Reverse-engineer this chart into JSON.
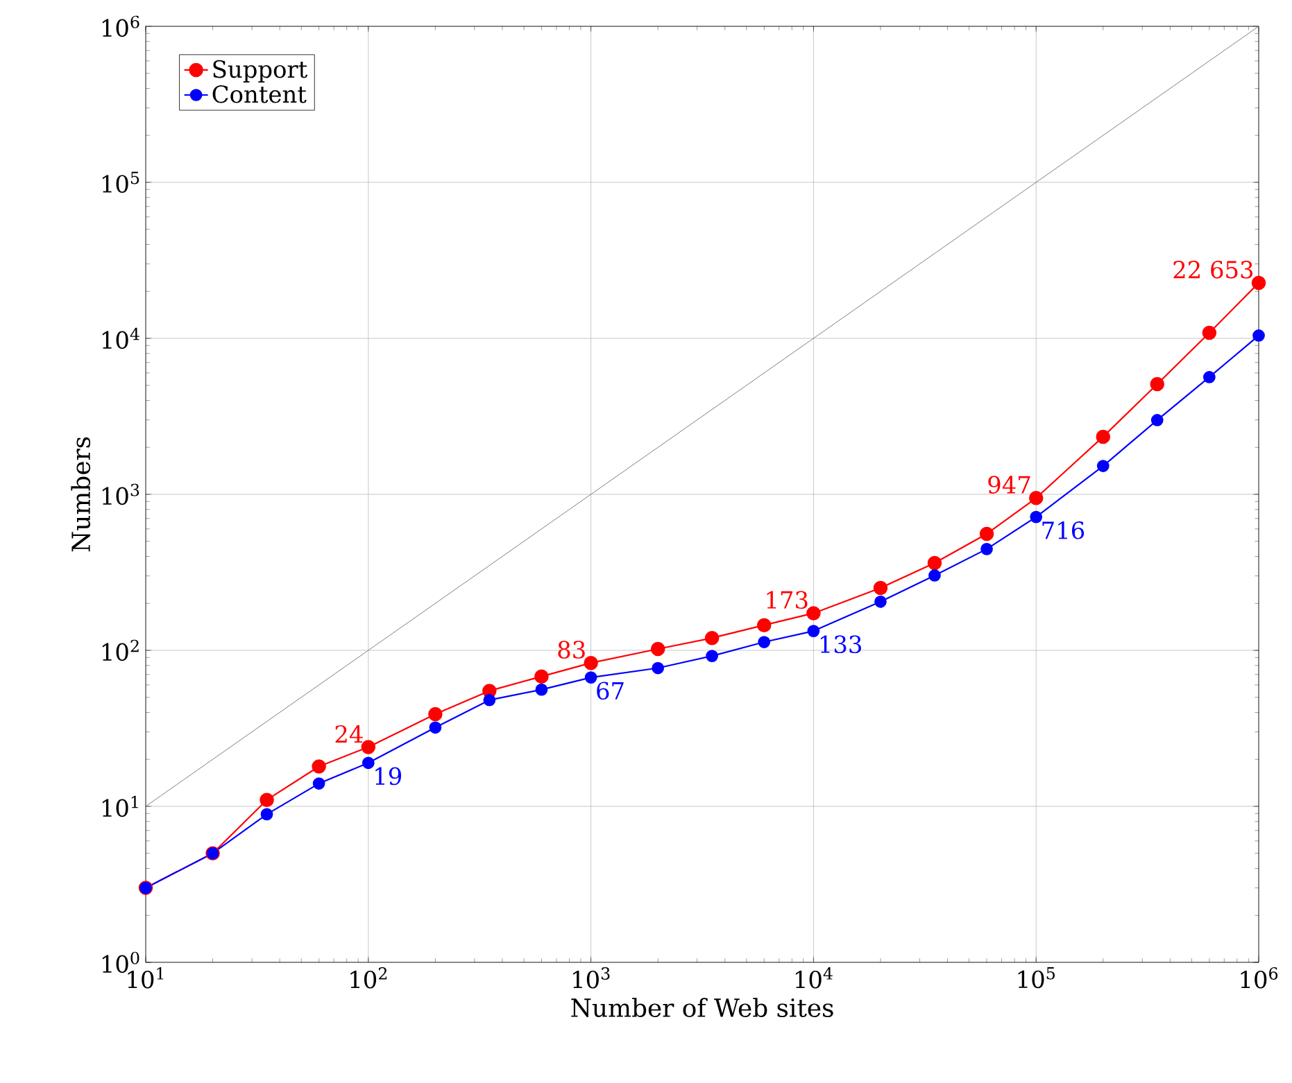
{
  "chart_data": {
    "type": "line",
    "xlabel": "Number of Web sites",
    "ylabel": "Numbers",
    "log": "xy",
    "grid": true,
    "legend": "top left",
    "marker": "circle",
    "xlim": [
      10,
      1000000
    ],
    "ylim": [
      1,
      1000000
    ],
    "xticks": [
      {
        "value": 10,
        "label": "10$^{1}$"
      },
      {
        "value": 100,
        "label": "10$^{2}$"
      },
      {
        "value": 1000,
        "label": "10$^{3}$"
      },
      {
        "value": 10000,
        "label": "10$^{4}$"
      },
      {
        "value": 100000,
        "label": "10$^{5}$"
      },
      {
        "value": 1000000,
        "label": "10$^{6}$"
      }
    ],
    "yticks": [
      {
        "value": 1,
        "label": "10$^{0}$"
      },
      {
        "value": 10,
        "label": "10$^{1}$"
      },
      {
        "value": 100,
        "label": "10$^{2}$"
      },
      {
        "value": 1000,
        "label": "10$^{3}$"
      },
      {
        "value": 10000,
        "label": "10$^{4}$"
      },
      {
        "value": 100000,
        "label": "10$^{5}$"
      },
      {
        "value": 1000000,
        "label": "10$^{6}$"
      }
    ],
    "x": [
      10,
      20,
      35,
      60,
      100,
      200,
      350,
      600,
      1000,
      2000,
      3500,
      6000,
      10000,
      20000,
      35000,
      60000,
      100000,
      200000,
      350000,
      600000,
      1000000
    ],
    "series": [
      {
        "name": "Support",
        "color": "#ff0000",
        "values": [
          3,
          5,
          11,
          18,
          24,
          39,
          55,
          68,
          83,
          102,
          120,
          145,
          173,
          251,
          363,
          558,
          947,
          2340,
          5090,
          10850,
          22653
        ],
        "value_labels": [
          null,
          null,
          null,
          null,
          "24",
          null,
          null,
          null,
          "83",
          null,
          null,
          null,
          "173",
          null,
          null,
          null,
          "947",
          null,
          null,
          null,
          "22 653"
        ]
      },
      {
        "name": "Content",
        "color": "#0000ff",
        "values": [
          3,
          5,
          8.9,
          14,
          19,
          32,
          48,
          56,
          67,
          77,
          92,
          113,
          133,
          205,
          302,
          446,
          716,
          1520,
          2990,
          5640,
          10420
        ],
        "value_labels": [
          null,
          null,
          null,
          null,
          "19",
          null,
          null,
          null,
          "67",
          null,
          null,
          null,
          "133",
          null,
          null,
          null,
          "716",
          null,
          null,
          null,
          null
        ]
      },
      {
        "type": "line",
        "color": "#808080",
        "marker": "none",
        "x": [
          10,
          1000000
        ],
        "values": [
          10,
          1000000
        ]
      }
    ]
  }
}
